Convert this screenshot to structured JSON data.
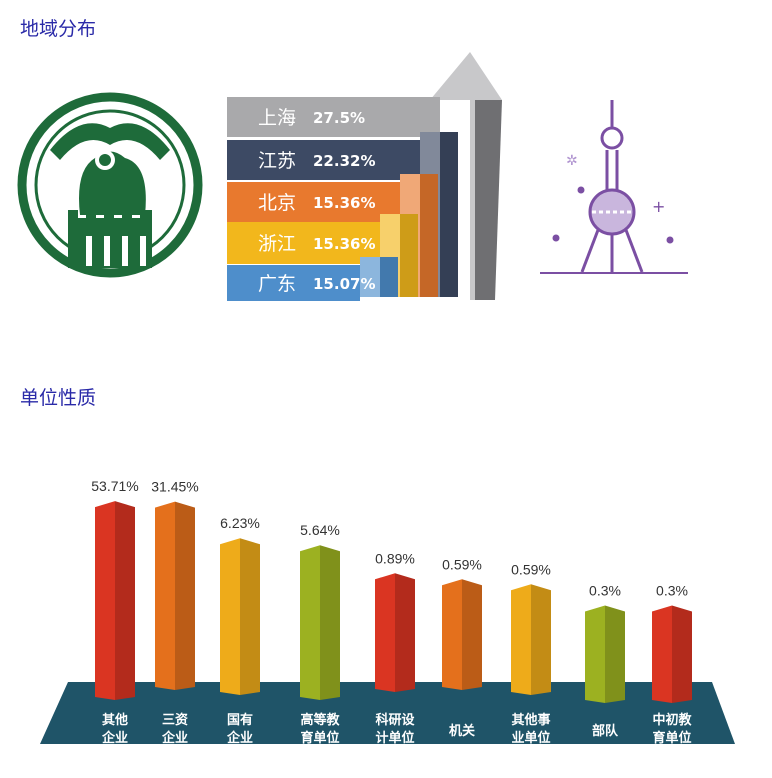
{
  "sections": {
    "region_title": "地域分布",
    "unit_title": "单位性质"
  },
  "chart_data": [
    {
      "type": "bar",
      "title": "地域分布",
      "categories": [
        "上海",
        "江苏",
        "北京",
        "浙江",
        "广东"
      ],
      "values": [
        27.5,
        22.32,
        15.36,
        15.36,
        15.07
      ],
      "labels": [
        "27.5%",
        "22.32%",
        "15.36%",
        "15.36%",
        "15.07%"
      ],
      "colors": [
        "#a9a9ab",
        "#3d4a64",
        "#e8792e",
        "#f2b71c",
        "#4e8ecb"
      ]
    },
    {
      "type": "bar",
      "title": "单位性质",
      "categories": [
        "其他企业",
        "三资企业",
        "国有企业",
        "高等教育单位",
        "科研设计单位",
        "机关",
        "其他事业单位",
        "部队",
        "中初教育单位"
      ],
      "category_lines": [
        [
          "其他",
          "企业"
        ],
        [
          "三资",
          "企业"
        ],
        [
          "国有",
          "企业"
        ],
        [
          "高等教",
          "育单位"
        ],
        [
          "科研设",
          "计单位"
        ],
        [
          "机关"
        ],
        [
          "其他事",
          "业单位"
        ],
        [
          "部队"
        ],
        [
          "中初教",
          "育单位"
        ]
      ],
      "values": [
        53.71,
        31.45,
        6.23,
        5.64,
        0.89,
        0.59,
        0.59,
        0.3,
        0.3
      ],
      "labels": [
        "53.71%",
        "31.45%",
        "6.23%",
        "5.64%",
        "0.89%",
        "0.59%",
        "0.59%",
        "0.3%",
        "0.3%"
      ],
      "colors": [
        "#da3522",
        "#e4701c",
        "#eeab1a",
        "#9cb121",
        "#da3522",
        "#e4701c",
        "#eeab1a",
        "#9cb121",
        "#da3522"
      ],
      "base_color": "#1f5468"
    }
  ]
}
